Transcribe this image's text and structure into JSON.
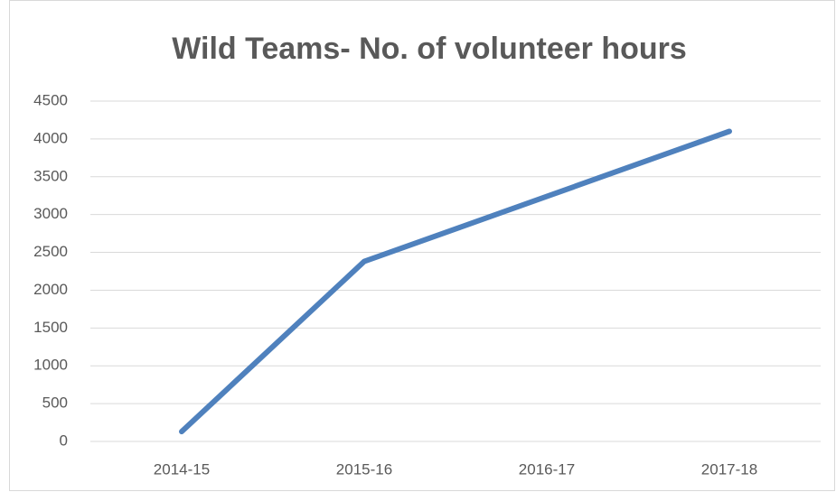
{
  "chart_data": {
    "type": "line",
    "title": "Wild Teams- No. of volunteer hours",
    "categories": [
      "2014-15",
      "2015-16",
      "2016-17",
      "2017-18"
    ],
    "values": [
      130,
      2380,
      3240,
      4100
    ],
    "color": "#4f81bd",
    "ylim": [
      0,
      4500
    ],
    "yticks": [
      0,
      500,
      1000,
      1500,
      2000,
      2500,
      3000,
      3500,
      4000,
      4500
    ],
    "grid": true
  }
}
